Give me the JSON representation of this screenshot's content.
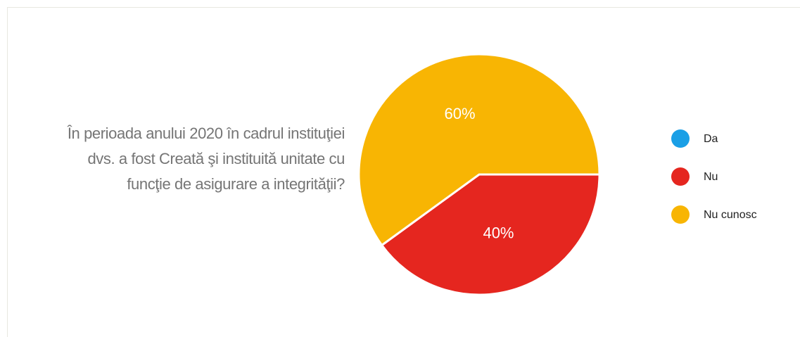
{
  "chart_data": {
    "type": "pie",
    "title": "În perioada anului 2020 în cadrul instituţiei dvs. a fost Creată şi instituită unitate cu funcţie de asigurare a integrităţii?",
    "categories": [
      "Da",
      "Nu",
      "Nu cunosc"
    ],
    "values": [
      0,
      40,
      60
    ],
    "value_labels": [
      null,
      "40%",
      "60%"
    ],
    "colors": [
      "#1a9fe6",
      "#e5261f",
      "#f8b503"
    ],
    "legend": "right"
  }
}
